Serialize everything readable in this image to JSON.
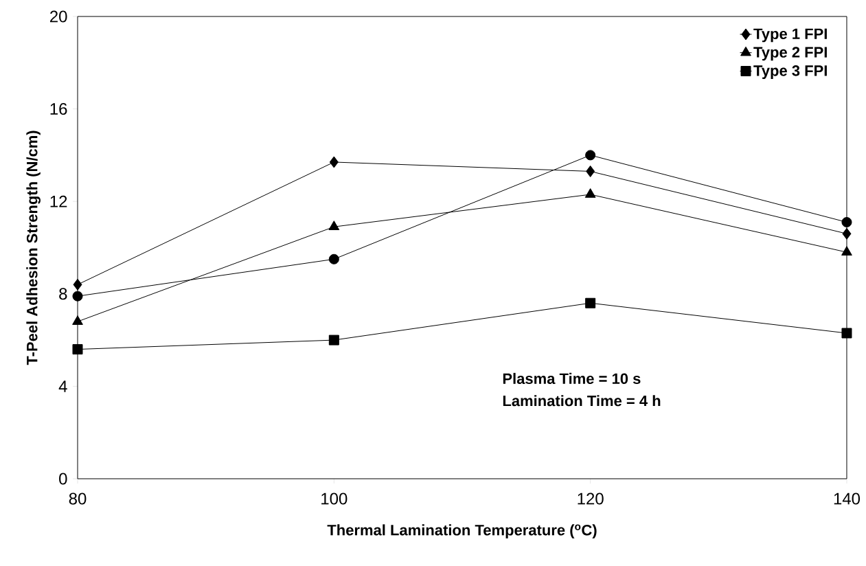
{
  "chart_data": {
    "type": "line",
    "xlabel": "Thermal Lamination Temperature ($^{o}$C)",
    "ylabel": "T-Peel Adhesion Strength (N/cm)",
    "x": [
      80,
      100,
      120,
      140
    ],
    "xlim": [
      80,
      140
    ],
    "xticks": [
      80,
      100,
      120,
      140
    ],
    "ylim": [
      0,
      20
    ],
    "yticks": [
      0,
      4,
      8,
      12,
      16,
      20
    ],
    "series": [
      {
        "color": "#000000",
        "marker": "circle",
        "values": [
          7.9,
          9.5,
          14.0,
          11.1
        ]
      },
      {
        "name": "Type 1 FPI",
        "color": "#000000",
        "marker": "diamond",
        "values": [
          8.4,
          13.7,
          13.3,
          10.6
        ]
      },
      {
        "name": "Type 2 FPI",
        "color": "#000000",
        "marker": "triangle",
        "values": [
          6.8,
          10.9,
          12.3,
          9.8
        ]
      },
      {
        "name": "Type 3 FPI",
        "color": "#000000",
        "marker": "square",
        "values": [
          5.6,
          6.0,
          7.6,
          6.3
        ]
      }
    ],
    "legend": "top right",
    "grid": false,
    "line_style": "solid",
    "annotations": [
      "Plasma Time = 10 s",
      "Lamination Time = 4 h"
    ]
  }
}
